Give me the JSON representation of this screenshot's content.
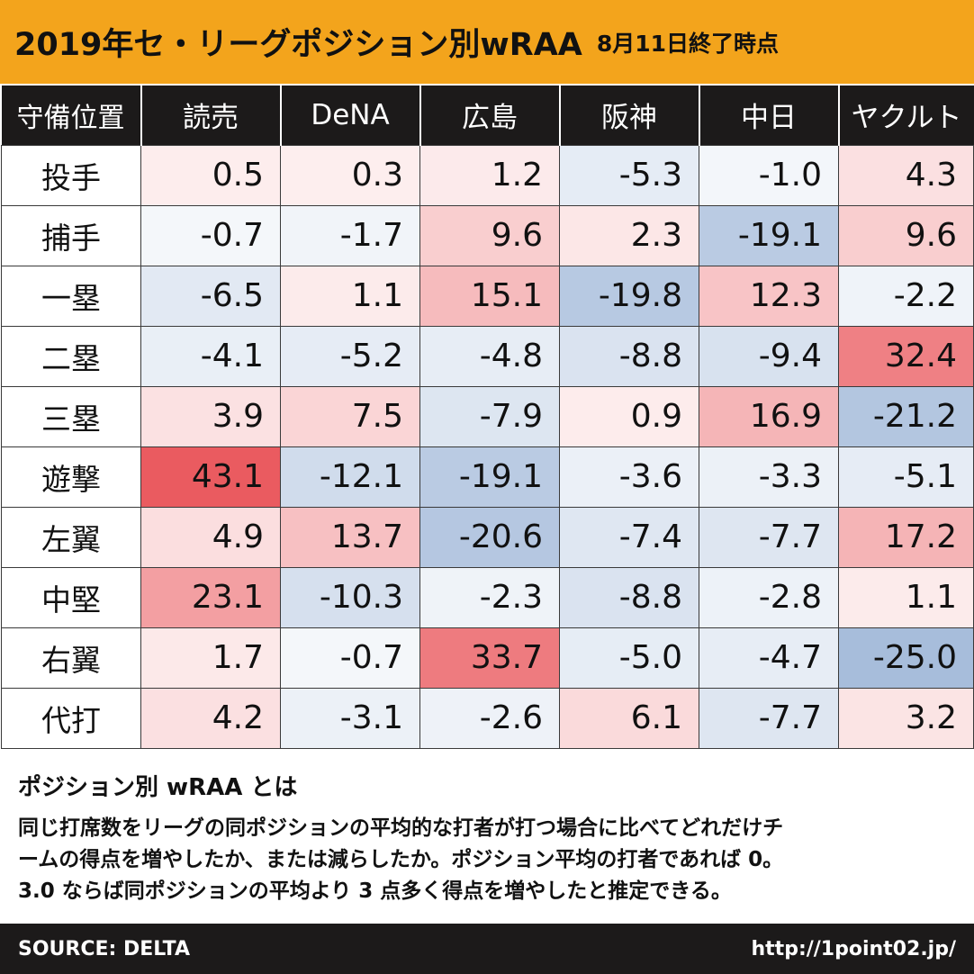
{
  "header": {
    "title": "2019年セ・リーグポジション別wRAA",
    "subtitle": "8月11日終了時点"
  },
  "chart_data": {
    "type": "heatmap",
    "row_header_label": "守備位置",
    "columns": [
      "読売",
      "DeNA",
      "広島",
      "阪神",
      "中日",
      "ヤクルト"
    ],
    "rows": [
      "投手",
      "捕手",
      "一塁",
      "二塁",
      "三塁",
      "遊撃",
      "左翼",
      "中堅",
      "右翼",
      "代打"
    ],
    "values": [
      [
        "0.5",
        "0.3",
        "1.2",
        "-5.3",
        "-1.0",
        "4.3"
      ],
      [
        "-0.7",
        "-1.7",
        "9.6",
        "2.3",
        "-19.1",
        "9.6"
      ],
      [
        "-6.5",
        "1.1",
        "15.1",
        "-19.8",
        "12.3",
        "-2.2"
      ],
      [
        "-4.1",
        "-5.2",
        "-4.8",
        "-8.8",
        "-9.4",
        "32.4"
      ],
      [
        "3.9",
        "7.5",
        "-7.9",
        "0.9",
        "16.9",
        "-21.2"
      ],
      [
        "43.1",
        "-12.1",
        "-19.1",
        "-3.6",
        "-3.3",
        "-5.1"
      ],
      [
        "4.9",
        "13.7",
        "-20.6",
        "-7.4",
        "-7.7",
        "17.2"
      ],
      [
        "23.1",
        "-10.3",
        "-2.3",
        "-8.8",
        "-2.8",
        "1.1"
      ],
      [
        "1.7",
        "-0.7",
        "33.7",
        "-5.0",
        "-4.7",
        "-25.0"
      ],
      [
        "4.2",
        "-3.1",
        "-2.6",
        "6.1",
        "-7.7",
        "3.2"
      ]
    ],
    "color_scale": {
      "negative": "#a7bddb",
      "neutral": "#ffffff",
      "positive": "#ea5b60"
    }
  },
  "description": {
    "title": "ポジション別 wRAA とは",
    "lines": [
      "同じ打席数をリーグの同ポジションの平均的な打者が打つ場合に比べてどれだけチ",
      "ームの得点を増やしたか、または減らしたか。ポジション平均の打者であれば 0。",
      "3.0 ならば同ポジションの平均より 3 点多く得点を増やしたと推定できる。"
    ]
  },
  "footer": {
    "source": "SOURCE: DELTA",
    "url": "http://1point02.jp/"
  }
}
